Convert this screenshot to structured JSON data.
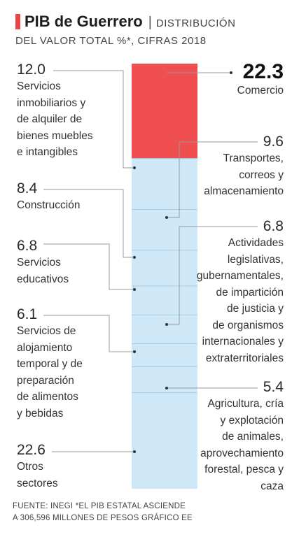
{
  "header": {
    "title_bold": "PIB de Guerrero",
    "title_separator": "|",
    "title_rest": "DISTRIBUCIÓN",
    "subtitle": "DEL VALOR TOTAL %*, CIFRAS 2018"
  },
  "colors": {
    "accent": "#e8474a",
    "highlight_segment": "#ef4f4f",
    "other_segments": "#cfe8f8",
    "segment_divider": "#a9cde4",
    "leader_line": "#9a9a9a"
  },
  "chart_data": {
    "type": "bar",
    "stacked": true,
    "orientation": "vertical",
    "ylim": [
      0,
      100
    ],
    "segments": [
      {
        "name": "Comercio",
        "value": 22.3,
        "value_label": "22.3",
        "side": "right",
        "highlight": true
      },
      {
        "name": "Servicios inmobiliarios y de alquiler de bienes muebles e intangibles",
        "value": 12.0,
        "value_label": "12.0",
        "side": "left",
        "highlight": false
      },
      {
        "name": "Transportes, correos y almacenamiento",
        "value": 9.6,
        "value_label": "9.6",
        "side": "right",
        "highlight": false
      },
      {
        "name": "Construcción",
        "value": 8.4,
        "value_label": "8.4",
        "side": "left",
        "highlight": false
      },
      {
        "name": "Actividades legislativas, gubernamentales, de impartición de justicia y de organismos internacionales y extraterritoriales",
        "value": 6.8,
        "value_label": "6.8",
        "side": "right",
        "highlight": false
      },
      {
        "name": "Servicios educativos",
        "value": 6.8,
        "value_label": "6.8",
        "side": "left",
        "highlight": false
      },
      {
        "name": "Agricultura, cría y explotación de animales, aprovechamiento forestal, pesca y caza",
        "value": 5.4,
        "value_label": "5.4",
        "side": "right",
        "highlight": false
      },
      {
        "name": "Servicios de alojamiento temporal y de preparación de alimentos y bebidas",
        "value": 6.1,
        "value_label": "6.1",
        "side": "left",
        "highlight": false
      },
      {
        "name": "Otros sectores",
        "value": 22.6,
        "value_label": "22.6",
        "side": "left",
        "highlight": false
      }
    ]
  },
  "labels": {
    "comercio": {
      "value": "22.3",
      "lines": [
        "Comercio"
      ]
    },
    "inmobiliarios": {
      "value": "12.0",
      "lines": [
        "Servicios",
        "inmobiliarios y",
        "de alquiler de",
        "bienes muebles",
        "e intangibles"
      ]
    },
    "transportes": {
      "value": "9.6",
      "lines": [
        "Transportes,",
        "correos y",
        "almacenamiento"
      ]
    },
    "construccion": {
      "value": "8.4",
      "lines": [
        "Construcción"
      ]
    },
    "actividades": {
      "value": "6.8",
      "lines": [
        "Actividades",
        "legislativas,",
        "gubernamentales,",
        "de impartición",
        "de justicia y",
        "de organismos",
        "internacionales y",
        "extraterritoriales"
      ]
    },
    "educativos": {
      "value": "6.8",
      "lines": [
        "Servicios",
        "educativos"
      ]
    },
    "agricultura": {
      "value": "5.4",
      "lines": [
        "Agricultura, cría",
        "y explotación",
        "de animales,",
        "aprovechamiento",
        "forestal, pesca y",
        "caza"
      ]
    },
    "alojamiento": {
      "value": "6.1",
      "lines": [
        "Servicios de",
        "alojamiento",
        "temporal y de",
        "preparación",
        "de alimentos",
        "y bebidas"
      ]
    },
    "otros": {
      "value": "22.6",
      "lines": [
        "Otros",
        "sectores"
      ]
    }
  },
  "footer": {
    "line1": "FUENTE: INEGI *EL PIB ESTATAL ASCIENDE",
    "line2": "A 306,596 MILLONES DE PESOS  GRÁFICO EE"
  }
}
